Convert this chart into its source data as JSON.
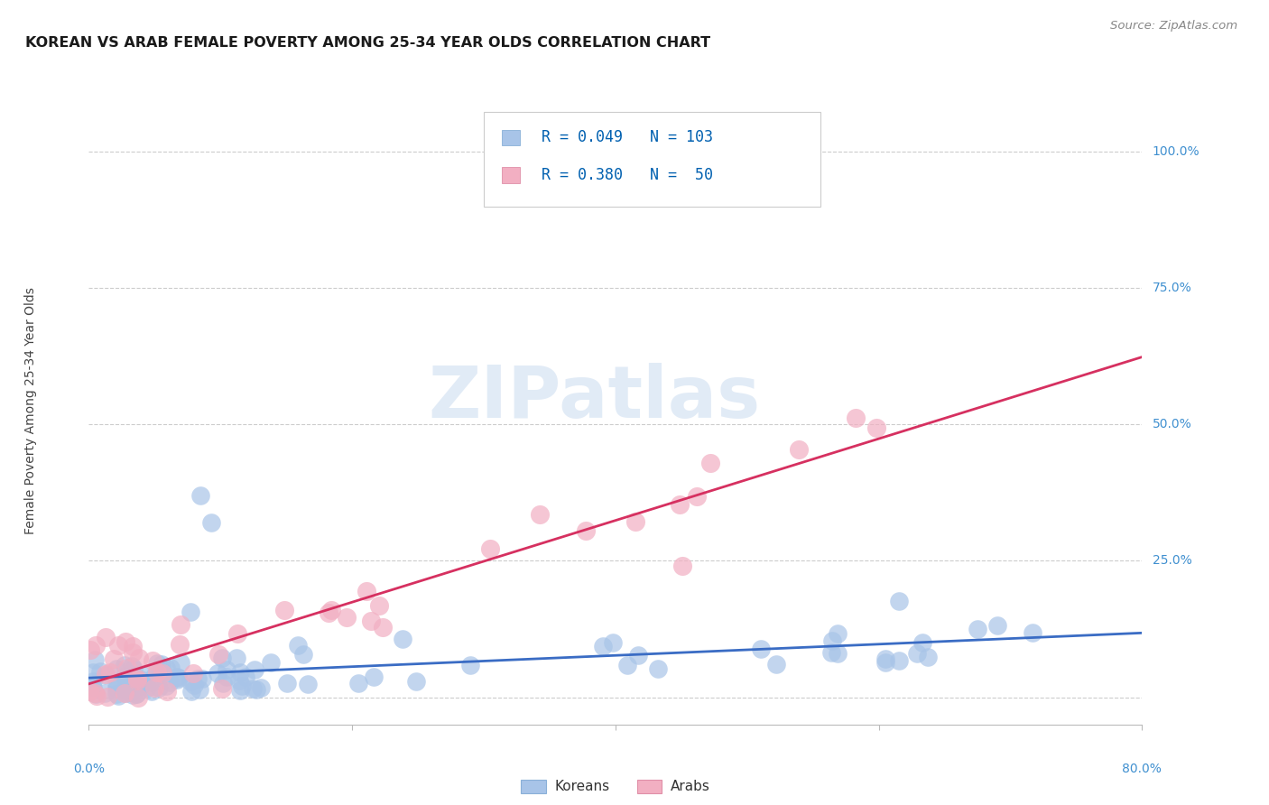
{
  "title": "KOREAN VS ARAB FEMALE POVERTY AMONG 25-34 YEAR OLDS CORRELATION CHART",
  "source": "Source: ZipAtlas.com",
  "ylabel": "Female Poverty Among 25-34 Year Olds",
  "xlim": [
    0.0,
    0.8
  ],
  "ylim": [
    -0.05,
    1.1
  ],
  "korean_R": 0.049,
  "korean_N": 103,
  "arab_R": 0.38,
  "arab_N": 50,
  "korean_color": "#a8c4e8",
  "arab_color": "#f2afc2",
  "korean_line_color": "#3a6cc4",
  "arab_line_color": "#d63060",
  "axis_label_color": "#4090d0",
  "grid_color": "#cccccc",
  "background_color": "#ffffff",
  "title_color": "#1a1a1a",
  "source_color": "#888888",
  "legend_text_color": "#0060b0",
  "title_fontsize": 11.5,
  "source_fontsize": 9.5,
  "ylabel_fontsize": 10,
  "tick_fontsize": 10,
  "legend_fontsize": 12,
  "watermark_text": "ZIPatlas",
  "watermark_color": "#c5d8ee",
  "watermark_alpha": 0.5
}
